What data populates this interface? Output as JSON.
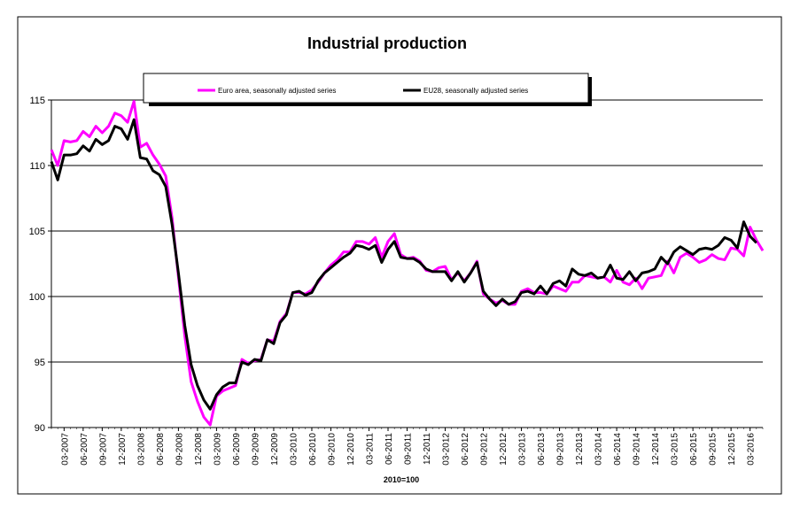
{
  "chart_data": {
    "type": "line",
    "title": "Industrial production",
    "xlabel": "2010=100",
    "ylabel": "",
    "ylim": [
      90,
      115
    ],
    "yticks": [
      90,
      95,
      100,
      105,
      110,
      115
    ],
    "grid": true,
    "legend_position": "top",
    "x_tick_labels": [
      "03-2007",
      "06-2007",
      "09-2007",
      "12-2007",
      "03-2008",
      "06-2008",
      "09-2008",
      "12-2008",
      "03-2009",
      "06-2009",
      "09-2009",
      "12-2009",
      "03-2010",
      "06-2010",
      "09-2010",
      "12-2010",
      "03-2011",
      "06-2011",
      "09-2011",
      "12-2011",
      "03-2012",
      "06-2012",
      "09-2012",
      "12-2012",
      "03-2013",
      "06-2013",
      "09-2013",
      "12-2013",
      "03-2014",
      "06-2014",
      "09-2014",
      "12-2014",
      "03-2015",
      "06-2015",
      "09-2015",
      "12-2015",
      "03-2016"
    ],
    "x_start": "01-2007",
    "x_end": "03-2016",
    "series": [
      {
        "name": "Euro area, seasonally adjusted series",
        "color": "#ff00ff",
        "values": [
          111.2,
          110.0,
          111.9,
          111.8,
          111.9,
          112.6,
          112.2,
          113.0,
          112.5,
          113.0,
          114.0,
          113.8,
          113.3,
          114.9,
          111.4,
          111.7,
          110.8,
          110.1,
          109.2,
          106.0,
          101.5,
          97.0,
          93.5,
          92.0,
          90.8,
          90.2,
          92.4,
          92.8,
          93.0,
          93.2,
          95.2,
          94.9,
          95.1,
          95.2,
          96.7,
          96.6,
          98.1,
          98.7,
          100.3,
          100.3,
          100.2,
          100.5,
          101.1,
          101.8,
          102.4,
          102.8,
          103.4,
          103.4,
          104.2,
          104.2,
          104.0,
          104.5,
          103.0,
          104.2,
          104.8,
          103.2,
          102.9,
          103.0,
          102.7,
          102.0,
          101.9,
          102.2,
          102.3,
          101.3,
          101.8,
          101.2,
          101.8,
          102.7,
          100.2,
          99.8,
          99.5,
          99.7,
          99.4,
          99.4,
          100.4,
          100.6,
          100.3,
          100.3,
          100.2,
          100.8,
          100.6,
          100.4,
          101.1,
          101.1,
          101.6,
          101.5,
          101.4,
          101.5,
          101.1,
          102.0,
          101.1,
          100.9,
          101.4,
          100.6,
          101.4,
          101.5,
          101.6,
          102.7,
          101.8,
          103.0,
          103.3,
          103.0,
          102.6,
          102.8,
          103.2,
          102.9,
          102.8,
          103.7,
          103.6,
          103.1,
          105.3,
          104.3,
          103.5
        ]
      },
      {
        "name": "EU28, seasonally adjusted series",
        "color": "#000000",
        "values": [
          110.3,
          108.9,
          110.8,
          110.8,
          110.9,
          111.5,
          111.1,
          112.0,
          111.6,
          111.9,
          113.0,
          112.8,
          112.0,
          113.5,
          110.6,
          110.5,
          109.6,
          109.3,
          108.4,
          105.5,
          101.8,
          97.8,
          94.8,
          93.2,
          92.1,
          91.4,
          92.5,
          93.1,
          93.4,
          93.4,
          95.0,
          94.8,
          95.2,
          95.1,
          96.7,
          96.4,
          98.0,
          98.6,
          100.3,
          100.4,
          100.1,
          100.3,
          101.2,
          101.8,
          102.2,
          102.6,
          103.0,
          103.3,
          103.9,
          103.8,
          103.6,
          103.9,
          102.6,
          103.6,
          104.2,
          103.0,
          102.9,
          102.9,
          102.6,
          102.1,
          101.9,
          101.9,
          101.9,
          101.2,
          101.9,
          101.1,
          101.8,
          102.6,
          100.4,
          99.8,
          99.3,
          99.8,
          99.4,
          99.6,
          100.3,
          100.4,
          100.2,
          100.8,
          100.2,
          101.0,
          101.2,
          100.8,
          102.1,
          101.7,
          101.6,
          101.8,
          101.4,
          101.5,
          102.4,
          101.4,
          101.3,
          101.9,
          101.2,
          101.8,
          101.9,
          102.1,
          103.0,
          102.5,
          103.4,
          103.8,
          103.5,
          103.2,
          103.6,
          103.7,
          103.6,
          103.9,
          104.5,
          104.3,
          103.7,
          105.7,
          104.6,
          104.1
        ]
      }
    ]
  }
}
